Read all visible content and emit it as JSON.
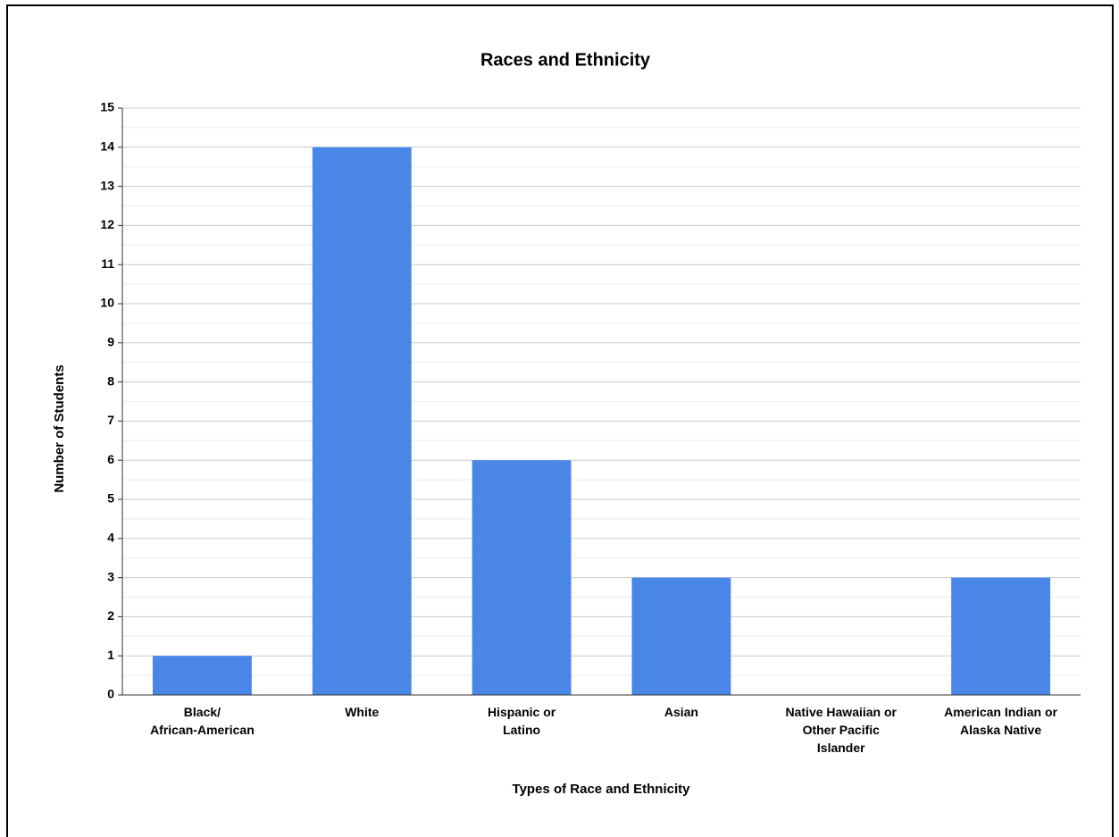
{
  "chart_data": {
    "type": "bar",
    "title": "Races and Ethnicity",
    "x_label": "Types of Race and Ethnicity",
    "y_label": "Number of Students",
    "categories": [
      "Black/\nAfrican-American",
      "White",
      "Hispanic or\nLatino",
      "Asian",
      "Native Hawaiian or\nOther Pacific\nIslander",
      "American Indian or\nAlaska Native"
    ],
    "values": [
      1,
      14,
      6,
      3,
      0,
      3
    ],
    "color": "#4a86e8",
    "ylim": [
      0,
      15
    ],
    "yticks": [
      0,
      1,
      2,
      3,
      4,
      5,
      6,
      7,
      8,
      9,
      10,
      11,
      12,
      13,
      14,
      15
    ],
    "grid": true,
    "minor_grid": true
  }
}
